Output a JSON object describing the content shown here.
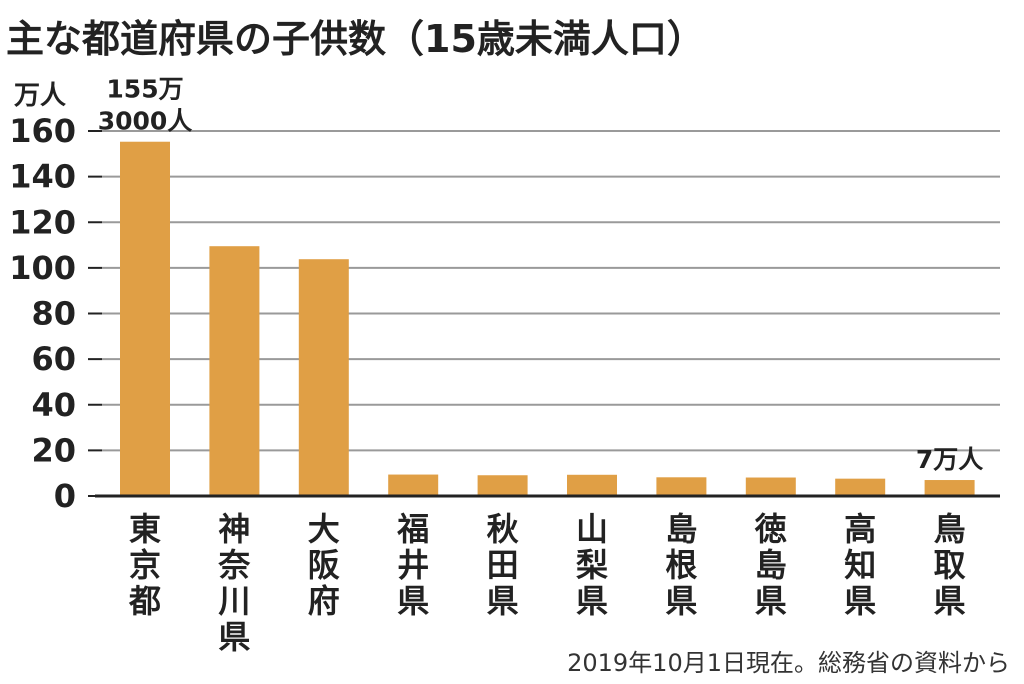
{
  "chart_data": {
    "type": "bar",
    "title": "主な都道府県の子供数（15歳未満人口）",
    "unit_label": "万人",
    "categories": [
      "東京都",
      "神奈川県",
      "大阪府",
      "福井県",
      "秋田県",
      "山梨県",
      "島根県",
      "徳島県",
      "高知県",
      "鳥取県"
    ],
    "values": [
      155.3,
      109.5,
      103.8,
      9.4,
      9.1,
      9.3,
      8.2,
      8.1,
      7.6,
      7
    ],
    "ylim": [
      0,
      160
    ],
    "yticks": [
      0,
      20,
      40,
      60,
      80,
      100,
      120,
      140,
      160
    ],
    "grid": true,
    "bar_color": "#e09f45",
    "annotations": [
      {
        "category_index": 0,
        "lines": [
          "155万",
          "3000人"
        ]
      },
      {
        "category_index": 9,
        "lines": [
          "7万人"
        ]
      }
    ],
    "source": "2019年10月1日現在。総務省の資料から"
  }
}
